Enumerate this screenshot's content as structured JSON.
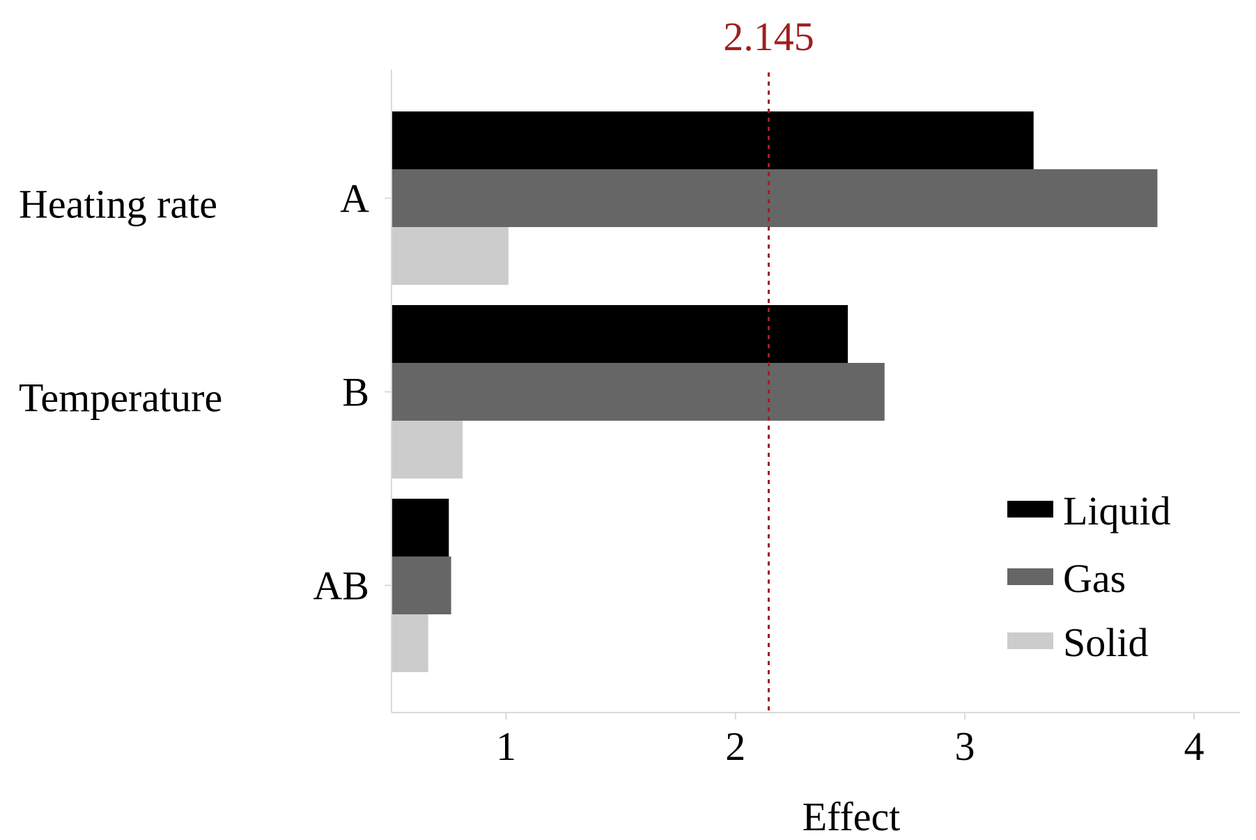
{
  "chart_data": {
    "type": "bar",
    "orientation": "horizontal",
    "title": "",
    "xlabel": "Effect",
    "ylabel": "",
    "xlim": [
      0.5,
      4.2
    ],
    "xticks": [
      1,
      2,
      3,
      4
    ],
    "grid": false,
    "legend_position": "right",
    "categories": [
      "A",
      "B",
      "AB"
    ],
    "category_descriptions": [
      "Heating rate",
      "Temperature",
      ""
    ],
    "series": [
      {
        "name": "Liquid",
        "color": "#000000",
        "values": [
          3.3,
          2.49,
          0.75
        ]
      },
      {
        "name": "Gas",
        "color": "#666666",
        "values": [
          3.84,
          2.65,
          0.76
        ]
      },
      {
        "name": "Solid",
        "color": "#cccccc",
        "values": [
          1.01,
          0.81,
          0.66
        ]
      }
    ],
    "reference_line": {
      "value": 2.145,
      "label": "2.145",
      "color": "#a01f1f",
      "style": "dotted"
    }
  }
}
